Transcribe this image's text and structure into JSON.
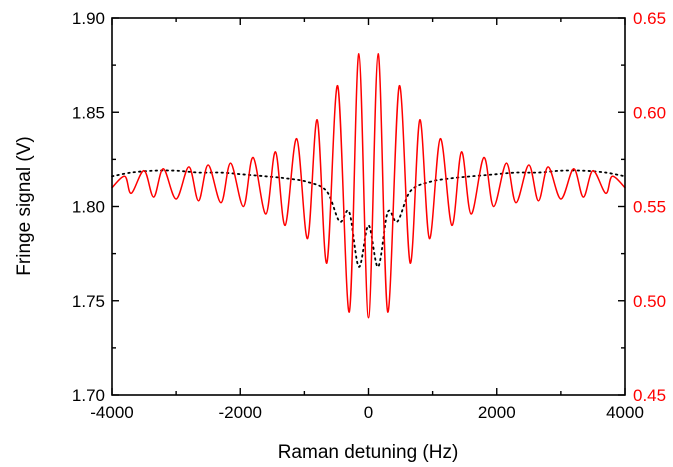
{
  "chart_data": {
    "type": "line",
    "title": "",
    "xlabel": "Raman detuning (Hz)",
    "ylabel_left": "Fringe signal (V)",
    "ylabel_right": "",
    "xlim": [
      -4000,
      4000
    ],
    "ylim_left": [
      1.7,
      1.9
    ],
    "ylim_right": [
      0.45,
      0.65
    ],
    "x_ticks": [
      "-4000",
      "-2000",
      "0",
      "2000",
      "4000"
    ],
    "y_ticks_left": [
      "1.70",
      "1.75",
      "1.80",
      "1.85",
      "1.90"
    ],
    "y_ticks_right": [
      "0.45",
      "0.50",
      "0.55",
      "0.60",
      "0.65"
    ],
    "grid": false,
    "legend": "none",
    "colors": {
      "solid": "#ff0000",
      "dotted": "#000000",
      "right_axis": "#ff0000"
    },
    "series": [
      {
        "axis": "left",
        "style": "dotted",
        "x": [
          -4000,
          -3700,
          -3350,
          -3000,
          -2650,
          -2300,
          -1950,
          -1600,
          -1300,
          -950,
          -650,
          -450,
          -300,
          -150,
          0,
          150,
          300,
          450,
          650,
          950,
          1300,
          1600,
          1950,
          2300,
          2650,
          3000,
          3350,
          3700,
          4000
        ],
        "y": [
          1.816,
          1.818,
          1.819,
          1.819,
          1.818,
          1.818,
          1.817,
          1.816,
          1.815,
          1.813,
          1.808,
          1.792,
          1.797,
          1.768,
          1.79,
          1.768,
          1.797,
          1.792,
          1.808,
          1.813,
          1.815,
          1.816,
          1.817,
          1.818,
          1.818,
          1.819,
          1.819,
          1.818,
          1.816
        ]
      },
      {
        "axis": "right",
        "style": "solid",
        "x": [
          -4000,
          -3800,
          -3700,
          -3500,
          -3350,
          -3200,
          -3000,
          -2800,
          -2650,
          -2500,
          -2300,
          -2150,
          -1950,
          -1800,
          -1600,
          -1450,
          -1300,
          -1120,
          -950,
          -800,
          -650,
          -480,
          -300,
          -150,
          0,
          150,
          300,
          480,
          650,
          800,
          950,
          1120,
          1300,
          1450,
          1600,
          1800,
          1950,
          2150,
          2300,
          2500,
          2650,
          2800,
          3000,
          3200,
          3350,
          3500,
          3700,
          3800,
          4000
        ],
        "y": [
          0.56,
          0.566,
          0.557,
          0.569,
          0.555,
          0.57,
          0.554,
          0.571,
          0.553,
          0.572,
          0.552,
          0.573,
          0.55,
          0.576,
          0.546,
          0.579,
          0.54,
          0.586,
          0.533,
          0.596,
          0.52,
          0.614,
          0.494,
          0.631,
          0.491,
          0.631,
          0.494,
          0.614,
          0.52,
          0.596,
          0.533,
          0.586,
          0.54,
          0.579,
          0.546,
          0.576,
          0.55,
          0.573,
          0.552,
          0.572,
          0.553,
          0.571,
          0.554,
          0.57,
          0.555,
          0.569,
          0.557,
          0.566,
          0.56
        ]
      }
    ]
  }
}
